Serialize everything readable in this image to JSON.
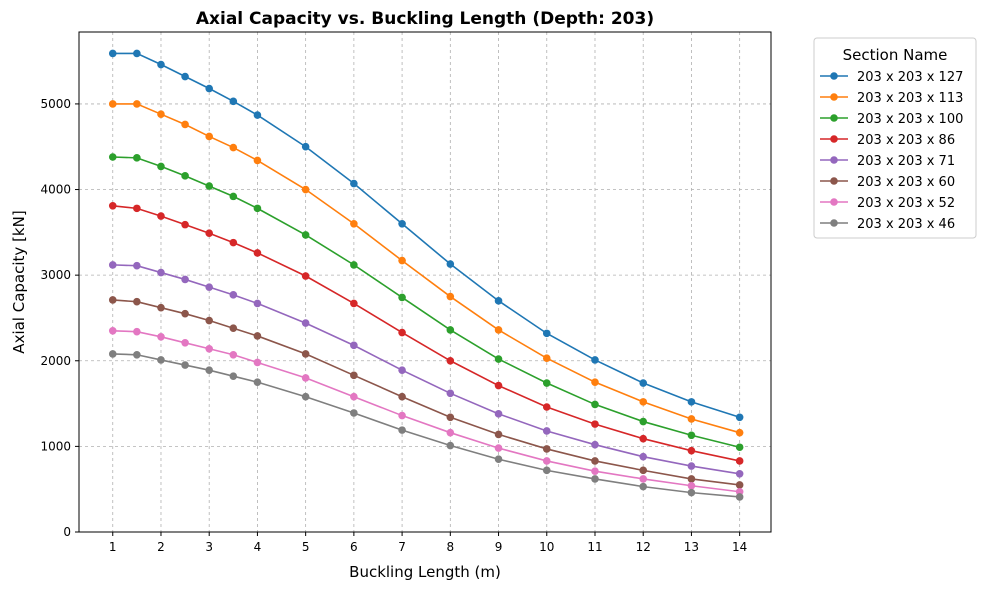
{
  "chart_data": {
    "type": "line",
    "title": "Axial Capacity vs. Buckling Length (Depth: 203)",
    "xlabel": "Buckling Length (m)",
    "ylabel": "Axial Capacity [kN]",
    "x": [
      1,
      1.5,
      2,
      2.5,
      3,
      3.5,
      4,
      5,
      6,
      7,
      8,
      9,
      10,
      11,
      12,
      13,
      14
    ],
    "xticks": [
      1,
      2,
      3,
      4,
      5,
      6,
      7,
      8,
      9,
      10,
      11,
      12,
      13,
      14
    ],
    "yticks": [
      0,
      1000,
      2000,
      3000,
      4000,
      5000
    ],
    "xlim": [
      0.3,
      14.65
    ],
    "ylim": [
      0,
      5840
    ],
    "grid": true,
    "legend": {
      "title": "Section Name",
      "placement": "outside-top-right"
    },
    "series": [
      {
        "name": "203 x 203 x 127",
        "color": "#1f77b4",
        "values": [
          5590,
          5590,
          5460,
          5320,
          5180,
          5030,
          4870,
          4500,
          4070,
          3600,
          3130,
          2700,
          2320,
          2010,
          1740,
          1520,
          1340
        ]
      },
      {
        "name": "203 x 203 x 113",
        "color": "#ff7f0e",
        "values": [
          5000,
          5000,
          4880,
          4760,
          4620,
          4490,
          4340,
          4000,
          3600,
          3170,
          2750,
          2360,
          2030,
          1750,
          1520,
          1320,
          1160
        ]
      },
      {
        "name": "203 x 203 x 100",
        "color": "#2ca02c",
        "values": [
          4380,
          4370,
          4270,
          4160,
          4040,
          3920,
          3780,
          3470,
          3120,
          2740,
          2360,
          2020,
          1740,
          1490,
          1290,
          1130,
          990
        ]
      },
      {
        "name": "203 x 203 x 86",
        "color": "#d62728",
        "values": [
          3810,
          3780,
          3690,
          3590,
          3490,
          3380,
          3260,
          2990,
          2670,
          2330,
          2000,
          1710,
          1460,
          1260,
          1090,
          950,
          830
        ]
      },
      {
        "name": "203 x 203 x 71",
        "color": "#9467bd",
        "values": [
          3120,
          3110,
          3030,
          2950,
          2860,
          2770,
          2670,
          2440,
          2180,
          1890,
          1620,
          1380,
          1180,
          1020,
          880,
          770,
          680
        ]
      },
      {
        "name": "203 x 203 x 60",
        "color": "#8c564b",
        "values": [
          2710,
          2690,
          2620,
          2550,
          2470,
          2380,
          2290,
          2080,
          1830,
          1580,
          1340,
          1140,
          970,
          830,
          720,
          620,
          550
        ]
      },
      {
        "name": "203 x 203 x 52",
        "color": "#e377c2",
        "values": [
          2350,
          2340,
          2280,
          2210,
          2140,
          2070,
          1980,
          1800,
          1580,
          1360,
          1160,
          980,
          830,
          710,
          620,
          540,
          470
        ]
      },
      {
        "name": "203 x 203 x 46",
        "color": "#7f7f7f",
        "values": [
          2080,
          2070,
          2010,
          1950,
          1890,
          1820,
          1750,
          1580,
          1390,
          1190,
          1010,
          850,
          720,
          620,
          530,
          460,
          410
        ]
      }
    ]
  }
}
